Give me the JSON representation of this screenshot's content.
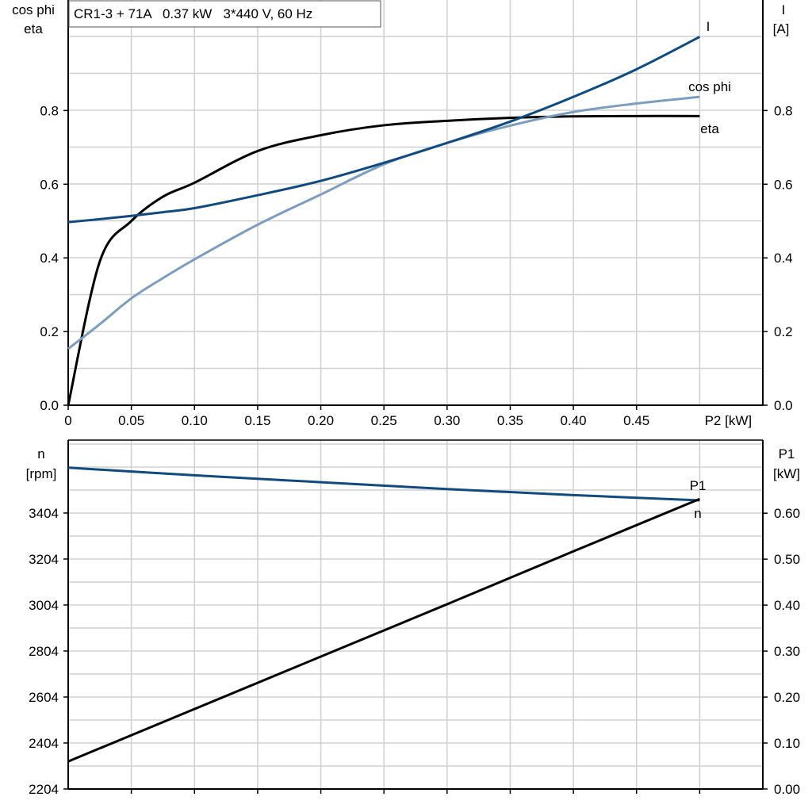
{
  "chart_data": [
    {
      "type": "line",
      "title": "CR1-3 + 71A   0.37 kW   3*440 V, 60 Hz",
      "xlabel": "P2 [kW]",
      "ylabel_left": [
        "cos phi",
        "eta"
      ],
      "ylabel_right": [
        "I",
        "[A]"
      ],
      "xlim": [
        0,
        0.55
      ],
      "ylim": [
        0,
        1.1
      ],
      "xticks": [
        "0",
        "0.05",
        "0.10",
        "0.15",
        "0.20",
        "0.25",
        "0.30",
        "0.35",
        "0.40",
        "0.45"
      ],
      "yticks_left": [
        "0.0",
        "0.2",
        "0.4",
        "0.6",
        "0.8"
      ],
      "yticks_right": [
        "0.0",
        "0.2",
        "0.4",
        "0.6",
        "0.8"
      ],
      "grid": true,
      "x": [
        0,
        0.025,
        0.05,
        0.075,
        0.1,
        0.15,
        0.2,
        0.25,
        0.3,
        0.35,
        0.4,
        0.45,
        0.5
      ],
      "series": [
        {
          "name": "eta",
          "color": "#000000",
          "values": [
            0,
            0.39,
            0.5,
            0.566,
            0.604,
            0.69,
            0.733,
            0.76,
            0.772,
            0.78,
            0.784,
            0.785,
            0.785
          ]
        },
        {
          "name": "cos phi",
          "color": "#7b9dc0",
          "values": [
            0.153,
            0.22,
            0.29,
            0.345,
            0.396,
            0.49,
            0.572,
            0.654,
            0.712,
            0.759,
            0.796,
            0.819,
            0.837
          ]
        },
        {
          "name": "I",
          "color": "#0f4a80",
          "values": [
            0.497,
            0.505,
            0.514,
            0.524,
            0.535,
            0.57,
            0.609,
            0.658,
            0.712,
            0.77,
            0.837,
            0.912,
            1.0
          ]
        }
      ]
    },
    {
      "type": "line",
      "ylabel_left": [
        "n",
        "[rpm]"
      ],
      "ylabel_right": [
        "P1",
        "[kW]"
      ],
      "xlim": [
        0,
        0.55
      ],
      "ylim_left": [
        2204,
        3721
      ],
      "ylim_right": [
        0,
        0.759
      ],
      "yticks_left": [
        "2204",
        "2404",
        "2604",
        "2804",
        "3004",
        "3204",
        "3404"
      ],
      "yticks_right": [
        "0.00",
        "0.10",
        "0.20",
        "0.30",
        "0.40",
        "0.50",
        "0.60"
      ],
      "grid": true,
      "x": [
        0,
        0.1,
        0.2,
        0.3,
        0.4,
        0.5
      ],
      "series": [
        {
          "name": "n",
          "axis": "left",
          "color": "#0f4a80",
          "values": [
            3601,
            3568,
            3538,
            3508,
            3482,
            3459
          ]
        },
        {
          "name": "P1",
          "axis": "right",
          "color": "#000000",
          "values": [
            0.06,
            0.174,
            0.288,
            0.402,
            0.517,
            0.631
          ]
        }
      ]
    }
  ]
}
